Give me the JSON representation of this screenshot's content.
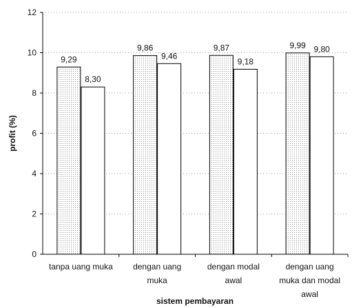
{
  "chart_data": {
    "type": "bar",
    "categories": [
      [
        "tanpa uang muka"
      ],
      [
        "dengan uang",
        "muka"
      ],
      [
        "dengan modal",
        "awal"
      ],
      [
        "dengan uang",
        "muka dan modal",
        "awal"
      ]
    ],
    "series": [
      {
        "values": [
          9.29,
          9.86,
          9.87,
          9.99
        ],
        "labels": [
          "9,29",
          "9,86",
          "9,87",
          "9,99"
        ],
        "pattern": "dotted"
      },
      {
        "values": [
          8.3,
          9.46,
          9.18,
          9.8
        ],
        "labels": [
          "8,30",
          "9,46",
          "9,18",
          "9,80"
        ],
        "pattern": "plain"
      }
    ],
    "title": "",
    "xlabel": "sistem pembayaran",
    "ylabel": "profit (%)",
    "ylim": [
      0,
      12
    ],
    "yticks": [
      0,
      2,
      4,
      6,
      8,
      10,
      12
    ],
    "grid": "horizontal-dotted",
    "legend": "none"
  }
}
